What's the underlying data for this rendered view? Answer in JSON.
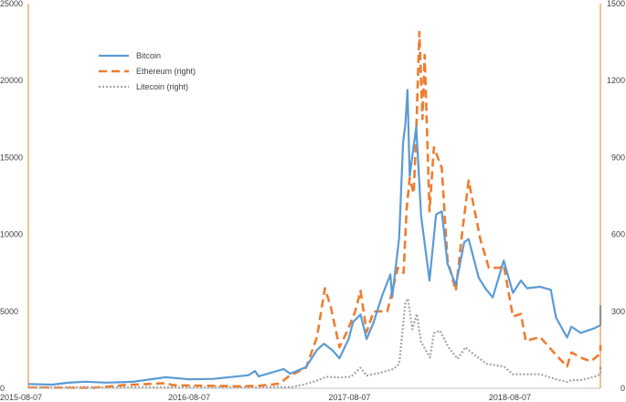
{
  "chart_data": {
    "type": "line",
    "title": "",
    "xlabel": "",
    "ylabel": "",
    "x_ticks": [
      "2015-08-07",
      "2016-08-07",
      "2017-08-07",
      "2018-08-07"
    ],
    "x_range": [
      "2015-08-07",
      "2019-03-01"
    ],
    "y_left": {
      "min": 0,
      "max": 25000,
      "ticks": [
        0,
        5000,
        10000,
        15000,
        20000,
        25000
      ]
    },
    "y_right": {
      "min": 0,
      "max": 1500,
      "ticks": [
        0,
        300,
        600,
        900,
        1200,
        1500
      ]
    },
    "grid": false,
    "legend_position": "top-left",
    "series": [
      {
        "name": "Bitcoin",
        "axis": "left",
        "color": "#5B9BD5",
        "style": "solid",
        "points": [
          [
            "2015-08-07",
            280
          ],
          [
            "2015-10-01",
            240
          ],
          [
            "2015-11-05",
            360
          ],
          [
            "2015-12-15",
            430
          ],
          [
            "2016-02-01",
            370
          ],
          [
            "2016-04-01",
            420
          ],
          [
            "2016-06-15",
            720
          ],
          [
            "2016-08-07",
            580
          ],
          [
            "2016-10-01",
            610
          ],
          [
            "2016-12-20",
            850
          ],
          [
            "2017-01-04",
            1120
          ],
          [
            "2017-01-12",
            780
          ],
          [
            "2017-02-20",
            1100
          ],
          [
            "2017-03-10",
            1250
          ],
          [
            "2017-03-25",
            950
          ],
          [
            "2017-04-30",
            1380
          ],
          [
            "2017-05-25",
            2500
          ],
          [
            "2017-06-10",
            2900
          ],
          [
            "2017-06-30",
            2450
          ],
          [
            "2017-07-15",
            1950
          ],
          [
            "2017-08-05",
            3200
          ],
          [
            "2017-08-15",
            4300
          ],
          [
            "2017-09-01",
            4800
          ],
          [
            "2017-09-15",
            3200
          ],
          [
            "2017-10-01",
            4300
          ],
          [
            "2017-10-20",
            6000
          ],
          [
            "2017-11-08",
            7400
          ],
          [
            "2017-11-12",
            5900
          ],
          [
            "2017-11-28",
            9800
          ],
          [
            "2017-12-07",
            16000
          ],
          [
            "2017-12-12",
            17100
          ],
          [
            "2017-12-17",
            19400
          ],
          [
            "2017-12-22",
            13800
          ],
          [
            "2018-01-06",
            17000
          ],
          [
            "2018-01-17",
            11200
          ],
          [
            "2018-02-05",
            7000
          ],
          [
            "2018-02-20",
            11300
          ],
          [
            "2018-03-05",
            11500
          ],
          [
            "2018-03-18",
            8100
          ],
          [
            "2018-04-06",
            6700
          ],
          [
            "2018-04-25",
            9500
          ],
          [
            "2018-05-05",
            9700
          ],
          [
            "2018-05-28",
            7200
          ],
          [
            "2018-06-12",
            6500
          ],
          [
            "2018-06-29",
            5900
          ],
          [
            "2018-07-24",
            8300
          ],
          [
            "2018-08-14",
            6200
          ],
          [
            "2018-09-01",
            7000
          ],
          [
            "2018-09-15",
            6500
          ],
          [
            "2018-10-15",
            6600
          ],
          [
            "2018-11-08",
            6400
          ],
          [
            "2018-11-20",
            4600
          ],
          [
            "2018-12-15",
            3300
          ],
          [
            "2018-12-25",
            4000
          ],
          [
            "2019-01-15",
            3600
          ],
          [
            "2019-02-15",
            3900
          ],
          [
            "2019-03-01",
            4100
          ],
          [
            "2019-04-03",
            5000
          ],
          [
            "2019-04-30",
            5400
          ]
        ]
      },
      {
        "name": "Ethereum (right)",
        "axis": "right",
        "color": "#ED7D31",
        "style": "dashed",
        "points": [
          [
            "2015-08-07",
            3
          ],
          [
            "2016-01-01",
            1
          ],
          [
            "2016-03-10",
            12
          ],
          [
            "2016-06-15",
            20
          ],
          [
            "2016-07-01",
            12
          ],
          [
            "2016-08-07",
            11
          ],
          [
            "2016-12-01",
            8
          ],
          [
            "2017-01-15",
            10
          ],
          [
            "2017-03-01",
            18
          ],
          [
            "2017-03-20",
            45
          ],
          [
            "2017-04-30",
            80
          ],
          [
            "2017-05-25",
            200
          ],
          [
            "2017-06-12",
            390
          ],
          [
            "2017-06-25",
            320
          ],
          [
            "2017-07-15",
            160
          ],
          [
            "2017-08-01",
            220
          ],
          [
            "2017-08-20",
            300
          ],
          [
            "2017-09-01",
            380
          ],
          [
            "2017-09-15",
            220
          ],
          [
            "2017-10-01",
            300
          ],
          [
            "2017-11-01",
            300
          ],
          [
            "2017-11-25",
            470
          ],
          [
            "2017-12-08",
            450
          ],
          [
            "2017-12-15",
            700
          ],
          [
            "2017-12-22",
            820
          ],
          [
            "2017-12-31",
            760
          ],
          [
            "2018-01-06",
            1000
          ],
          [
            "2018-01-13",
            1390
          ],
          [
            "2018-01-20",
            1050
          ],
          [
            "2018-01-25",
            1300
          ],
          [
            "2018-02-05",
            690
          ],
          [
            "2018-02-15",
            940
          ],
          [
            "2018-03-05",
            860
          ],
          [
            "2018-03-18",
            500
          ],
          [
            "2018-04-06",
            380
          ],
          [
            "2018-04-20",
            600
          ],
          [
            "2018-05-05",
            810
          ],
          [
            "2018-05-18",
            700
          ],
          [
            "2018-06-01",
            580
          ],
          [
            "2018-06-20",
            470
          ],
          [
            "2018-07-15",
            470
          ],
          [
            "2018-07-24",
            480
          ],
          [
            "2018-08-14",
            280
          ],
          [
            "2018-09-01",
            290
          ],
          [
            "2018-09-12",
            185
          ],
          [
            "2018-10-15",
            200
          ],
          [
            "2018-11-20",
            130
          ],
          [
            "2018-12-15",
            85
          ],
          [
            "2018-12-25",
            140
          ],
          [
            "2019-01-15",
            120
          ],
          [
            "2019-02-07",
            105
          ],
          [
            "2019-03-01",
            135
          ],
          [
            "2019-04-03",
            165
          ],
          [
            "2019-04-30",
            155
          ]
        ]
      },
      {
        "name": "Litecoin (right)",
        "axis": "right",
        "color": "#A5A5A5",
        "style": "dotted",
        "points": [
          [
            "2015-08-07",
            4
          ],
          [
            "2016-08-07",
            4
          ],
          [
            "2017-01-01",
            4
          ],
          [
            "2017-03-30",
            5
          ],
          [
            "2017-04-25",
            15
          ],
          [
            "2017-05-25",
            30
          ],
          [
            "2017-06-15",
            45
          ],
          [
            "2017-07-15",
            42
          ],
          [
            "2017-08-10",
            45
          ],
          [
            "2017-09-01",
            80
          ],
          [
            "2017-09-15",
            50
          ],
          [
            "2017-10-15",
            60
          ],
          [
            "2017-11-15",
            75
          ],
          [
            "2017-11-28",
            95
          ],
          [
            "2017-12-12",
            330
          ],
          [
            "2017-12-18",
            350
          ],
          [
            "2017-12-28",
            230
          ],
          [
            "2018-01-07",
            290
          ],
          [
            "2018-01-17",
            180
          ],
          [
            "2018-02-06",
            120
          ],
          [
            "2018-02-15",
            215
          ],
          [
            "2018-03-01",
            225
          ],
          [
            "2018-03-20",
            160
          ],
          [
            "2018-04-10",
            115
          ],
          [
            "2018-04-28",
            160
          ],
          [
            "2018-05-15",
            135
          ],
          [
            "2018-06-15",
            95
          ],
          [
            "2018-07-24",
            85
          ],
          [
            "2018-08-14",
            55
          ],
          [
            "2018-09-10",
            55
          ],
          [
            "2018-10-15",
            55
          ],
          [
            "2018-11-20",
            35
          ],
          [
            "2018-12-15",
            25
          ],
          [
            "2018-12-25",
            32
          ],
          [
            "2019-01-15",
            32
          ],
          [
            "2019-02-15",
            45
          ],
          [
            "2019-03-05",
            55
          ],
          [
            "2019-04-03",
            85
          ],
          [
            "2019-04-30",
            70
          ]
        ]
      }
    ]
  }
}
